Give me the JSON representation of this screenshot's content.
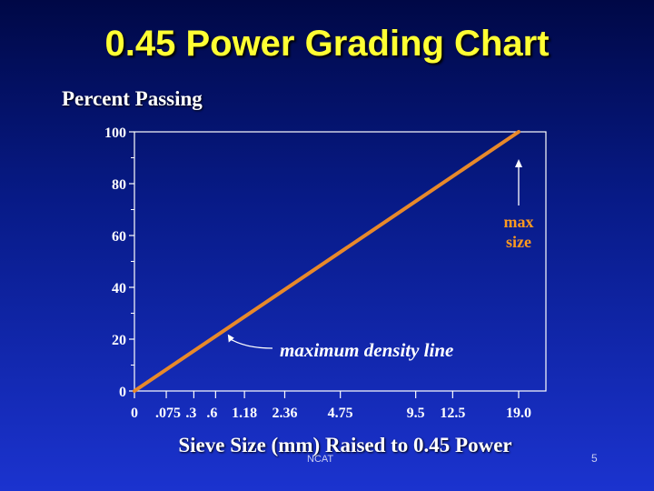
{
  "slide": {
    "title": "0.45 Power Grading Chart",
    "footer_org": "NCAT",
    "page_number": "5"
  },
  "colors": {
    "title": "#ffff33",
    "line": "#e8892a",
    "axis": "#ffffff",
    "max_annotation": "#ff9a1f"
  },
  "chart_data": {
    "type": "line",
    "title": "",
    "ylabel": "Percent Passing",
    "xlabel": "Sieve Size (mm) Raised to 0.45 Power",
    "x_scale": "power-0.45",
    "xlim": [
      0,
      19.0
    ],
    "ylim": [
      0,
      100
    ],
    "x_ticks": [
      0,
      0.075,
      0.3,
      0.6,
      1.18,
      2.36,
      4.75,
      9.5,
      12.5,
      19.0
    ],
    "x_tick_labels": [
      "0",
      ".075",
      ".3",
      ".6",
      "1.18",
      "2.36",
      "4.75",
      "9.5",
      "12.5",
      "19.0"
    ],
    "y_ticks": [
      0,
      20,
      40,
      60,
      80,
      100
    ],
    "y_tick_labels": [
      "0",
      "20",
      "40",
      "60",
      "80",
      "100"
    ],
    "y_minor_ticks": [
      10,
      30,
      50,
      70,
      90
    ],
    "grid": false,
    "series": [
      {
        "x": [
          0,
          19.0
        ],
        "y": [
          0,
          100
        ]
      }
    ],
    "annotations": [
      {
        "text": "maximum density line",
        "x": 0.75,
        "y": 24
      },
      {
        "text_lines": [
          "max",
          "size"
        ],
        "x": 19.0,
        "y": 100
      }
    ]
  }
}
